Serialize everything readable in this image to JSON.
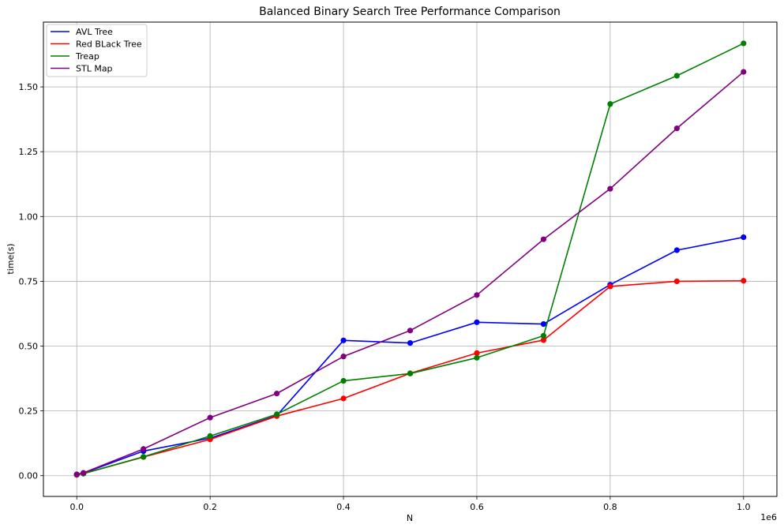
{
  "chart_data": {
    "type": "line",
    "title": "Balanced Binary Search Tree Performance Comparison",
    "xlabel": "N",
    "ylabel": "time(s)",
    "x_offset_label": "1e6",
    "xlim": [
      -0.05,
      1.05
    ],
    "ylim": [
      -0.08,
      1.75
    ],
    "x_ticks": [
      0.0,
      0.2,
      0.4,
      0.6,
      0.8,
      1.0
    ],
    "x_tick_labels": [
      "0.0",
      "0.2",
      "0.4",
      "0.6",
      "0.8",
      "1.0"
    ],
    "y_ticks": [
      0.0,
      0.25,
      0.5,
      0.75,
      1.0,
      1.25,
      1.5
    ],
    "y_tick_labels": [
      "0.00",
      "0.25",
      "0.50",
      "0.75",
      "1.00",
      "1.25",
      "1.50"
    ],
    "grid": true,
    "legend_position": "top-left",
    "x": [
      0.0,
      0.01,
      0.1,
      0.2,
      0.3,
      0.4,
      0.5,
      0.6,
      0.7,
      0.8,
      0.9,
      1.0
    ],
    "series": [
      {
        "name": "AVL Tree",
        "color": "#0000ff",
        "values": [
          0.005,
          0.01,
          0.095,
          0.145,
          0.232,
          0.522,
          0.512,
          0.592,
          0.585,
          0.737,
          0.87,
          0.92
        ]
      },
      {
        "name": "Red BLack Tree",
        "color": "#ff0000",
        "values": [
          0.003,
          0.008,
          0.072,
          0.14,
          0.23,
          0.298,
          0.395,
          0.473,
          0.523,
          0.73,
          0.75,
          0.752
        ]
      },
      {
        "name": "Treap",
        "color": "#008000",
        "values": [
          0.004,
          0.008,
          0.073,
          0.153,
          0.237,
          0.366,
          0.394,
          0.455,
          0.54,
          1.434,
          1.543,
          1.668
        ]
      },
      {
        "name": "STL Map",
        "color": "#800080",
        "values": [
          0.005,
          0.011,
          0.103,
          0.224,
          0.317,
          0.46,
          0.56,
          0.697,
          0.912,
          1.107,
          1.34,
          1.558
        ]
      }
    ]
  }
}
